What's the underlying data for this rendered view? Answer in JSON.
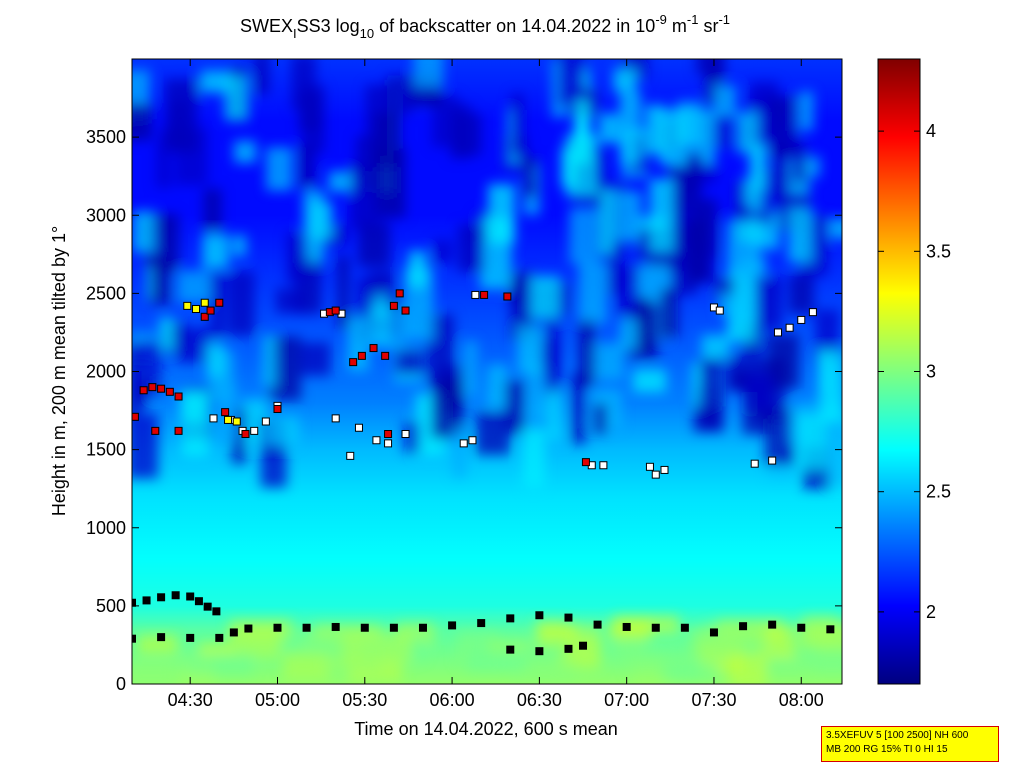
{
  "chart_data": {
    "type": "heatmap",
    "title": {
      "part1": "SWEX",
      "sub1": "I",
      "part2": "SS3 log",
      "sub2": "10",
      "part3": " of backscatter on 14.04.2022 in 10",
      "sup1": "-9",
      "part4": " m",
      "sup2": "-1",
      "part5": " sr",
      "sup3": "-1"
    },
    "xlabel": "Time on 14.04.2022, 600 s mean",
    "ylabel": "Height in m, 200 m mean tilted by 1°",
    "x_ticks": [
      "04:30",
      "05:00",
      "05:30",
      "06:00",
      "06:30",
      "07:00",
      "07:30",
      "08:00"
    ],
    "x_tick_minutes": [
      270,
      300,
      330,
      360,
      390,
      420,
      450,
      480
    ],
    "xlim_minutes": [
      250,
      494
    ],
    "y_ticks": [
      "0",
      "500",
      "1000",
      "1500",
      "2000",
      "2500",
      "3000",
      "3500"
    ],
    "y_tick_values": [
      0,
      500,
      1000,
      1500,
      2000,
      2500,
      3000,
      3500
    ],
    "ylim": [
      0,
      4000
    ],
    "colorbar": {
      "ticks": [
        "2",
        "2.5",
        "3",
        "3.5",
        "4"
      ],
      "tick_values": [
        2,
        2.5,
        3,
        3.5,
        4
      ],
      "range": [
        1.7,
        4.3
      ],
      "colormap": "jet"
    },
    "background_bands": [
      {
        "height": 0,
        "value": 3.05
      },
      {
        "height": 350,
        "value": 2.9
      },
      {
        "height": 500,
        "value": 2.75
      },
      {
        "height": 800,
        "value": 2.68
      },
      {
        "height": 1200,
        "value": 2.6
      },
      {
        "height": 1500,
        "value": 2.5
      },
      {
        "height": 1800,
        "value": 2.35
      },
      {
        "height": 2200,
        "value": 2.25
      },
      {
        "height": 2600,
        "value": 2.15
      },
      {
        "height": 3000,
        "value": 2.05
      },
      {
        "height": 3600,
        "value": 2.05
      },
      {
        "height": 4000,
        "value": 2.15
      }
    ],
    "series": [
      {
        "marker": "black",
        "values": [
          [
            250,
            520
          ],
          [
            255,
            535
          ],
          [
            260,
            555
          ],
          [
            265,
            568
          ],
          [
            270,
            560
          ],
          [
            273,
            530
          ],
          [
            276,
            495
          ],
          [
            279,
            465
          ],
          [
            250,
            290
          ],
          [
            260,
            300
          ],
          [
            270,
            295
          ],
          [
            280,
            295
          ],
          [
            285,
            330
          ],
          [
            290,
            355
          ],
          [
            300,
            360
          ],
          [
            310,
            360
          ],
          [
            320,
            365
          ],
          [
            330,
            360
          ],
          [
            340,
            360
          ],
          [
            350,
            360
          ],
          [
            360,
            375
          ],
          [
            370,
            390
          ],
          [
            380,
            420
          ],
          [
            390,
            440
          ],
          [
            400,
            425
          ],
          [
            410,
            380
          ],
          [
            420,
            365
          ],
          [
            430,
            360
          ],
          [
            440,
            360
          ],
          [
            450,
            330
          ],
          [
            460,
            370
          ],
          [
            470,
            380
          ],
          [
            480,
            360
          ],
          [
            490,
            350
          ],
          [
            380,
            220
          ],
          [
            390,
            210
          ],
          [
            400,
            225
          ],
          [
            405,
            245
          ]
        ]
      },
      {
        "marker": "white",
        "values": [
          [
            278,
            1700
          ],
          [
            284,
            1690
          ],
          [
            288,
            1620
          ],
          [
            292,
            1620
          ],
          [
            296,
            1680
          ],
          [
            300,
            1780
          ],
          [
            320,
            1700
          ],
          [
            328,
            1640
          ],
          [
            334,
            1560
          ],
          [
            338,
            1540
          ],
          [
            344,
            1600
          ],
          [
            316,
            2370
          ],
          [
            322,
            2370
          ],
          [
            325,
            1460
          ],
          [
            364,
            1540
          ],
          [
            367,
            1560
          ],
          [
            368,
            2490
          ],
          [
            408,
            1400
          ],
          [
            412,
            1400
          ],
          [
            428,
            1390
          ],
          [
            430,
            1340
          ],
          [
            433,
            1370
          ],
          [
            450,
            2410
          ],
          [
            452,
            2390
          ],
          [
            464,
            1410
          ],
          [
            470,
            1430
          ],
          [
            472,
            2250
          ],
          [
            476,
            2280
          ],
          [
            480,
            2330
          ],
          [
            484,
            2380
          ]
        ]
      },
      {
        "marker": "red",
        "values": [
          [
            251,
            1710
          ],
          [
            254,
            1880
          ],
          [
            257,
            1900
          ],
          [
            260,
            1890
          ],
          [
            263,
            1870
          ],
          [
            266,
            1840
          ],
          [
            258,
            1620
          ],
          [
            266,
            1620
          ],
          [
            275,
            2350
          ],
          [
            277,
            2390
          ],
          [
            280,
            2440
          ],
          [
            282,
            1740
          ],
          [
            289,
            1600
          ],
          [
            300,
            1760
          ],
          [
            318,
            2380
          ],
          [
            320,
            2390
          ],
          [
            326,
            2060
          ],
          [
            329,
            2100
          ],
          [
            333,
            2150
          ],
          [
            337,
            2100
          ],
          [
            340,
            2420
          ],
          [
            342,
            2500
          ],
          [
            344,
            2390
          ],
          [
            338,
            1600
          ],
          [
            379,
            2480
          ],
          [
            406,
            1420
          ],
          [
            371,
            2490
          ]
        ]
      },
      {
        "marker": "yellow",
        "values": [
          [
            269,
            2420
          ],
          [
            272,
            2400
          ],
          [
            275,
            2440
          ],
          [
            283,
            1690
          ],
          [
            286,
            1680
          ]
        ]
      }
    ]
  },
  "annotation_box": {
    "line1": "3.5XEFUV 5 [100 2500] NH 600",
    "line2": "MB 200 RG 15% TI 0 HI 15"
  }
}
